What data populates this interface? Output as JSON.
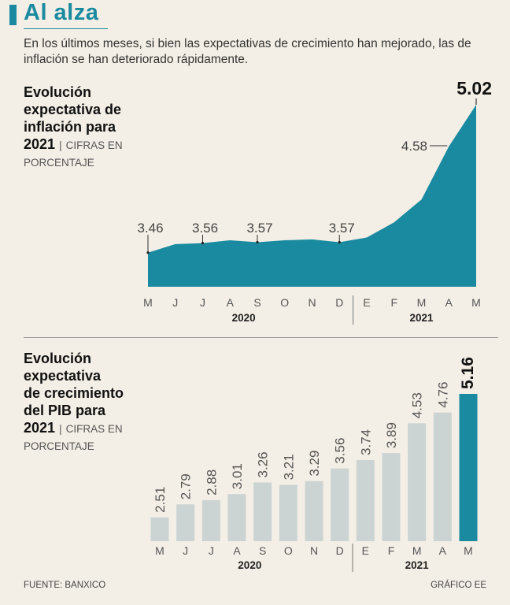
{
  "header": {
    "title": "Al alza",
    "subtitle": "En los últimos meses, si bien las expectativas de crecimiento han mejorado, las de inflación se han deteriorado rápidamente."
  },
  "colors": {
    "accent": "#1a8aa0",
    "bar_gray": "#ccd3d3",
    "background": "#f3efe6"
  },
  "chart_data": [
    {
      "type": "area",
      "title_line1": "Evolución",
      "title_line2": "expectativa de",
      "title_line3": "inflación para",
      "title_line4": "2021",
      "unit_line1": "CIFRAS EN",
      "unit_line2": "PORCENTAJE",
      "categories": [
        "M",
        "J",
        "J",
        "A",
        "S",
        "O",
        "N",
        "D",
        "E",
        "F",
        "M",
        "A",
        "M"
      ],
      "values": [
        3.46,
        3.55,
        3.56,
        3.59,
        3.57,
        3.59,
        3.6,
        3.57,
        3.62,
        3.78,
        4.02,
        4.58,
        5.02
      ],
      "labeled_points": [
        {
          "index": 0,
          "label": "3.46"
        },
        {
          "index": 2,
          "label": "3.56"
        },
        {
          "index": 4,
          "label": "3.57"
        },
        {
          "index": 7,
          "label": "3.57"
        },
        {
          "index": 11,
          "label": "4.58"
        },
        {
          "index": 12,
          "label": "5.02"
        }
      ],
      "year_groups": [
        {
          "label": "2020",
          "from": 0,
          "to": 7
        },
        {
          "label": "2021",
          "from": 8,
          "to": 12
        }
      ],
      "ylim": [
        3.1,
        5.02
      ]
    },
    {
      "type": "bar",
      "title_line1": "Evolución",
      "title_line2": "expectativa",
      "title_line3": "de crecimiento",
      "title_line4": "del PIB para",
      "title_line5": "2021",
      "unit_line1": "CIFRAS EN",
      "unit_line2": "PORCENTAJE",
      "categories": [
        "M",
        "J",
        "J",
        "A",
        "S",
        "O",
        "N",
        "D",
        "E",
        "F",
        "M",
        "A",
        "M"
      ],
      "values": [
        2.51,
        2.79,
        2.88,
        3.01,
        3.26,
        3.21,
        3.29,
        3.56,
        3.74,
        3.89,
        4.53,
        4.76,
        5.16
      ],
      "value_labels": [
        "2.51",
        "2.79",
        "2.88",
        "3.01",
        "3.26",
        "3.21",
        "3.29",
        "3.56",
        "3.74",
        "3.89",
        "4.53",
        "4.76",
        "5.16"
      ],
      "year_groups": [
        {
          "label": "2020",
          "from": 0,
          "to": 7
        },
        {
          "label": "2021",
          "from": 8,
          "to": 12
        }
      ],
      "highlight_index": 12,
      "ylim": [
        2.0,
        5.16
      ]
    }
  ],
  "footer": {
    "source": "FUENTE: BANXICO",
    "credit": "GRÁFICO EE"
  }
}
